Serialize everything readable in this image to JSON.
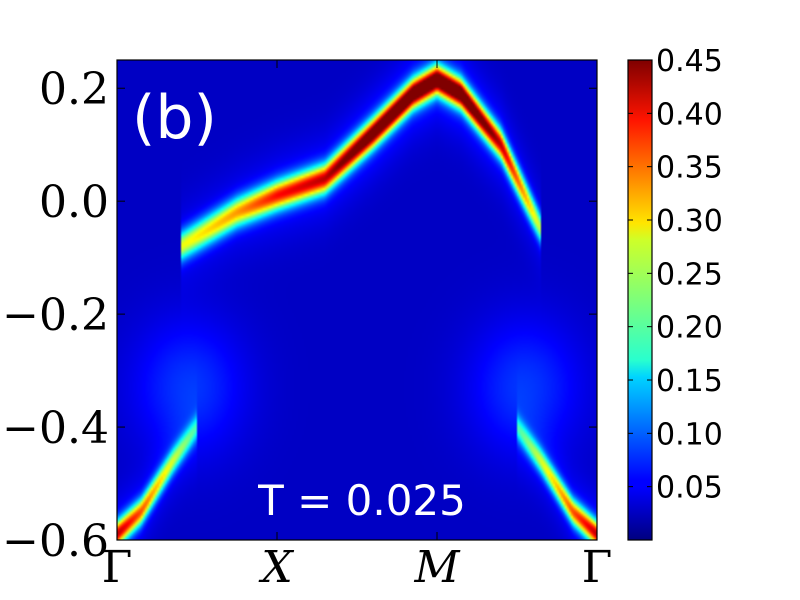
{
  "chart_data": {
    "type": "heatmap",
    "panel_label": "(b)",
    "annotation": "T = 0.025",
    "x_ticks": [
      {
        "label": "Γ",
        "italic": false,
        "pos": 0
      },
      {
        "label": "X",
        "italic": true,
        "pos": 1
      },
      {
        "label": "M",
        "italic": true,
        "pos": 2
      },
      {
        "label": "Γ",
        "italic": false,
        "pos": 3
      }
    ],
    "xlim": [
      0,
      3
    ],
    "ylim": [
      -0.6,
      0.25
    ],
    "y_ticks": [
      {
        "value": 0.2,
        "label": "0.2"
      },
      {
        "value": 0.0,
        "label": "0.0"
      },
      {
        "value": -0.2,
        "label": "−0.2"
      },
      {
        "value": -0.4,
        "label": "−0.4"
      },
      {
        "value": -0.6,
        "label": "−0.6"
      }
    ],
    "colormap": "jet",
    "colorbar": {
      "range": [
        0.0,
        0.45
      ],
      "ticks": [
        {
          "value": 0.45,
          "label": "0.45"
        },
        {
          "value": 0.4,
          "label": "0.40"
        },
        {
          "value": 0.35,
          "label": "0.35"
        },
        {
          "value": 0.3,
          "label": "0.30"
        },
        {
          "value": 0.25,
          "label": "0.25"
        },
        {
          "value": 0.2,
          "label": "0.20"
        },
        {
          "value": 0.15,
          "label": "0.15"
        },
        {
          "value": 0.1,
          "label": "0.10"
        },
        {
          "value": 0.05,
          "label": "0.05"
        }
      ]
    },
    "background_intensity": 0.03,
    "bands": [
      {
        "name": "upper",
        "points": [
          [
            0.4,
            -0.08
          ],
          [
            0.75,
            -0.02
          ],
          [
            1.0,
            0.01
          ],
          [
            1.3,
            0.04
          ],
          [
            1.6,
            0.12
          ],
          [
            1.85,
            0.19
          ],
          [
            2.0,
            0.215
          ],
          [
            2.15,
            0.19
          ],
          [
            2.4,
            0.1
          ],
          [
            2.65,
            -0.05
          ]
        ],
        "peak_intensity": [
          0.22,
          0.27,
          0.33,
          0.36,
          0.44,
          0.46,
          0.46,
          0.46,
          0.36,
          0.2
        ],
        "width": 0.025
      },
      {
        "name": "lower-left",
        "points": [
          [
            0.0,
            -0.59
          ],
          [
            0.15,
            -0.55
          ],
          [
            0.35,
            -0.46
          ],
          [
            0.5,
            -0.4
          ]
        ],
        "peak_intensity": [
          0.36,
          0.3,
          0.2,
          0.12
        ],
        "width": 0.022
      },
      {
        "name": "lower-right",
        "points": [
          [
            2.5,
            -0.4
          ],
          [
            2.65,
            -0.46
          ],
          [
            2.85,
            -0.55
          ],
          [
            3.0,
            -0.59
          ]
        ],
        "peak_intensity": [
          0.12,
          0.2,
          0.3,
          0.36
        ],
        "width": 0.022
      }
    ]
  }
}
